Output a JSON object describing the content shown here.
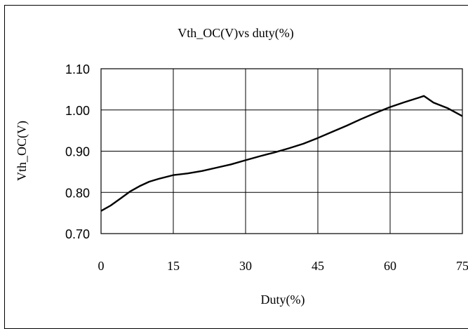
{
  "chart_data": {
    "type": "line",
    "title": "Vth_OC(V)vs duty(%)",
    "xlabel": "Duty(%)",
    "ylabel": "Vth_OC(V)",
    "xlim": [
      0,
      75
    ],
    "ylim": [
      0.7,
      1.1
    ],
    "x_ticks": [
      "0",
      "15",
      "30",
      "45",
      "60",
      "75"
    ],
    "y_ticks": [
      "1.10",
      "1.00",
      "0.90",
      "0.80",
      "0.70"
    ],
    "grid": true,
    "legend": "none",
    "series": [
      {
        "color": "#000000",
        "x": [
          0,
          2,
          4,
          6,
          8,
          10,
          12,
          15,
          18,
          21,
          24,
          27,
          30,
          33,
          36,
          39,
          42,
          45,
          48,
          51,
          54,
          57,
          60,
          63,
          66,
          67,
          69,
          72,
          75
        ],
        "y": [
          0.755,
          0.768,
          0.785,
          0.802,
          0.815,
          0.826,
          0.833,
          0.842,
          0.846,
          0.852,
          0.86,
          0.868,
          0.878,
          0.888,
          0.897,
          0.907,
          0.918,
          0.932,
          0.947,
          0.962,
          0.978,
          0.993,
          1.007,
          1.019,
          1.03,
          1.034,
          1.018,
          1.004,
          0.985
        ]
      }
    ]
  }
}
